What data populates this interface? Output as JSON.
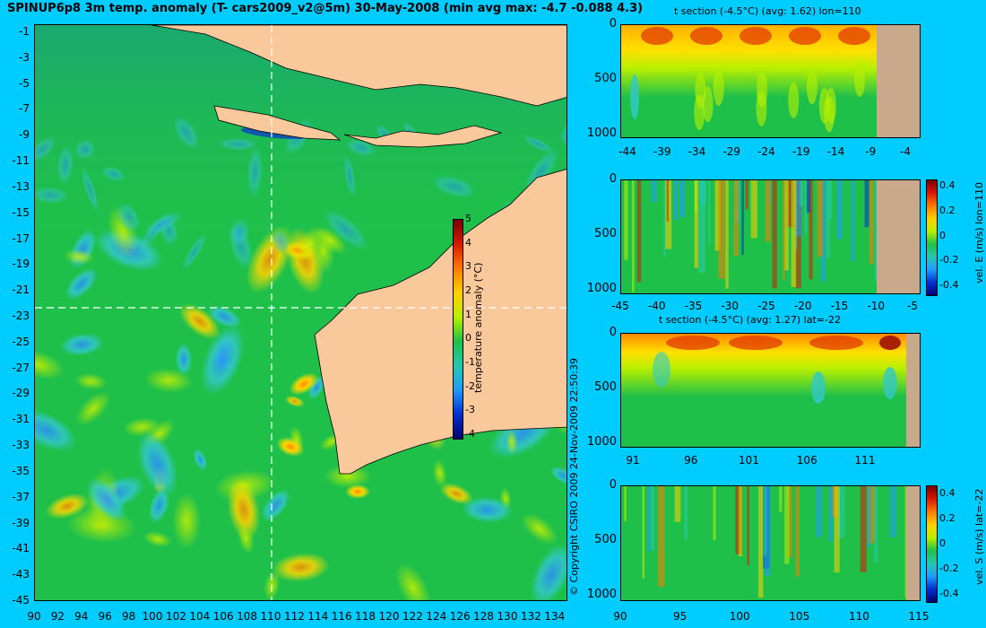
{
  "header": {
    "title": "SPINUP6p8 3m temp. anomaly (T- cars2009_v2@5m) 30-May-2008 (min avg max: -4.7 -0.088 4.3)"
  },
  "map": {
    "x_ticks": [
      "90",
      "92",
      "94",
      "96",
      "98",
      "100",
      "102",
      "104",
      "106",
      "108",
      "110",
      "112",
      "114",
      "116",
      "118",
      "120",
      "122",
      "124",
      "126",
      "128",
      "130",
      "132",
      "134"
    ],
    "y_ticks": [
      "-1",
      "-3",
      "-5",
      "-7",
      "-9",
      "-11",
      "-13",
      "-15",
      "-17",
      "-19",
      "-21",
      "-23",
      "-25",
      "-27",
      "-29",
      "-31",
      "-33",
      "-35",
      "-37",
      "-39",
      "-41",
      "-43",
      "-45"
    ],
    "colorbar": {
      "label": "temperature anomaly (°C)",
      "ticks": [
        "5",
        "4",
        "3",
        "2",
        "1",
        "0",
        "-1",
        "-2",
        "-3",
        "-4"
      ]
    },
    "copyright": "© Copyright CSIRO 2009   24-Nov-2009 22:50:39"
  },
  "colors": {
    "background": "#00ccff",
    "ocean": "#1fc04a",
    "land": "#f9c99b",
    "section_land": "#c8a98b"
  },
  "sections": {
    "temp_lon": {
      "title": "t section (-4.5°C) (avg: 1.62) lon=110",
      "y_ticks": [
        "0",
        "500",
        "1000"
      ],
      "x_ticks": [
        "-44",
        "-39",
        "-34",
        "-29",
        "-24",
        "-19",
        "-14",
        "-9",
        "-4"
      ]
    },
    "vel_e": {
      "x_ticks": [
        "-45",
        "-40",
        "-35",
        "-30",
        "-25",
        "-20",
        "-15",
        "-10",
        "-5"
      ],
      "y_ticks": [
        "0",
        "500",
        "1000"
      ],
      "colorbar_label": "vel. E (m/s) lon=110",
      "colorbar_ticks": [
        "0.4",
        "0.2",
        "0",
        "-0.2",
        "-0.4"
      ]
    },
    "temp_lat": {
      "title": "t section (-4.5°C) (avg: 1.27) lat=-22",
      "y_ticks": [
        "0",
        "500",
        "1000"
      ],
      "x_ticks": [
        "91",
        "96",
        "101",
        "106",
        "111"
      ]
    },
    "vel_s": {
      "x_ticks": [
        "90",
        "95",
        "100",
        "105",
        "110",
        "115"
      ],
      "y_ticks": [
        "0",
        "500",
        "1000"
      ],
      "colorbar_label": "vel. S (m/s) lat=-22",
      "colorbar_ticks": [
        "0.4",
        "0.2",
        "0",
        "-0.2",
        "-0.4"
      ]
    }
  },
  "chart_data": [
    {
      "type": "heatmap",
      "title": "SPINUP6p8 3m temp. anomaly (T- cars2009_v2@5m) 30-May-2008 (min avg max: -4.7 -0.088 4.3)",
      "xlim": [
        90,
        135
      ],
      "ylim": [
        -45,
        0
      ],
      "colorbar_range": [
        -4,
        5
      ],
      "colorbar_label": "temperature anomaly (°C)",
      "stats": {
        "min": -4.7,
        "avg": -0.088,
        "max": 4.3
      },
      "section_lines": {
        "lon": 110,
        "lat": -22
      }
    },
    {
      "type": "heatmap",
      "title": "t section (-4.5°C) (avg: 1.62) lon=110",
      "xlim": [
        -45,
        -2
      ],
      "ylim": [
        1050,
        0
      ],
      "avg": 1.62
    },
    {
      "type": "heatmap",
      "xlim": [
        -45,
        -2
      ],
      "ylim": [
        1050,
        0
      ],
      "colorbar_range": [
        -0.4,
        0.4
      ],
      "colorbar_label": "vel. E (m/s) lon=110"
    },
    {
      "type": "heatmap",
      "title": "t section (-4.5°C) (avg: 1.27) lat=-22",
      "xlim": [
        90,
        115
      ],
      "ylim": [
        1050,
        0
      ],
      "avg": 1.27
    },
    {
      "type": "heatmap",
      "xlim": [
        90,
        115
      ],
      "ylim": [
        1050,
        0
      ],
      "colorbar_range": [
        -0.4,
        0.4
      ],
      "colorbar_label": "vel. S (m/s) lat=-22"
    }
  ]
}
